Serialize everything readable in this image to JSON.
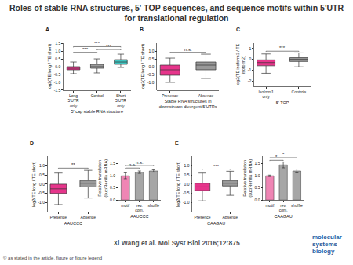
{
  "header": {
    "title": "Roles of stable RNA structures, 5' TOP sequences, and sequence motifs within 5'UTR for translational regulation"
  },
  "footer": {
    "citation": "Xi Wang et al. Mol Syst Biol 2016;12:875",
    "copyright": "© as stated in the article, figure or figure legend",
    "logo": "molecular systems biology"
  },
  "chart_data": [
    {
      "panel": "A",
      "type": "box",
      "x_label": "5' cap stable RNA structure",
      "y_label": "log2(TE long / TE short)",
      "categories": [
        "Long 5'UTR only",
        "Control",
        "Short 5'UTR only"
      ],
      "colors": [
        "#e6358b",
        "#9a9a9a",
        "#40c4c0"
      ],
      "boxes": [
        {
          "q1": -0.2,
          "median": -0.1,
          "q3": 0.0,
          "lower": -0.45,
          "upper": 0.3
        },
        {
          "q1": -0.1,
          "median": 0.0,
          "q3": 0.15,
          "lower": -0.4,
          "upper": 0.5
        },
        {
          "q1": 0.15,
          "median": 0.3,
          "q3": 0.45,
          "lower": -0.05,
          "upper": 0.8
        }
      ],
      "ylim": [
        -1.5,
        1.5
      ],
      "yticks": [
        {
          "value": -1.5,
          "label": "-1.5"
        },
        {
          "value": -1,
          "label": "-1.0"
        },
        {
          "value": -0.5,
          "label": "-0.5"
        },
        {
          "value": 0,
          "label": "0.0"
        },
        {
          "value": 0.5,
          "label": "0.5"
        },
        {
          "value": 1,
          "label": "1.0"
        },
        {
          "value": 1.5,
          "label": "1.5"
        }
      ],
      "significance": [
        {
          "text": "***",
          "between": [
            0,
            1
          ]
        },
        {
          "text": "***",
          "between": [
            1,
            2
          ]
        },
        {
          "text": "***",
          "between": [
            0,
            2
          ]
        }
      ]
    },
    {
      "panel": "B",
      "type": "box",
      "x_label": "Stable RNA structures in downstream divergent 5'UTRs",
      "y_label": "log2(TE long / TE short)",
      "categories": [
        "Presence",
        "Absence"
      ],
      "colors": [
        "#e6358b",
        "#9a9a9a"
      ],
      "boxes": [
        {
          "q1": -0.55,
          "median": -0.2,
          "q3": 0.1,
          "lower": -1.0,
          "upper": 0.55
        },
        {
          "q1": -0.2,
          "median": 0.1,
          "q3": 0.3,
          "lower": -0.75,
          "upper": 0.8
        }
      ],
      "ylim": [
        -1.5,
        1.5
      ],
      "yticks": [
        {
          "value": -1,
          "label": "-1.0"
        },
        {
          "value": -0.5,
          "label": "-0.5"
        },
        {
          "value": 0,
          "label": "0.0"
        },
        {
          "value": 0.5,
          "label": "0.5"
        },
        {
          "value": 1,
          "label": "1.0"
        }
      ],
      "significance": [
        {
          "text": "n.s.",
          "between": [
            0,
            1
          ]
        }
      ]
    },
    {
      "panel": "C",
      "type": "box",
      "x_label": "5' TOP",
      "y_label": "log2(TE isoform1 / TE isoform2)",
      "categories": [
        "Isoform1 only",
        "Controls"
      ],
      "colors": [
        "#e6358b",
        "#9a9a9a"
      ],
      "boxes": [
        {
          "q1": -0.6,
          "median": -0.3,
          "q3": -0.05,
          "lower": -1.3,
          "upper": 0.5
        },
        {
          "q1": -0.2,
          "median": 0.0,
          "q3": 0.15,
          "lower": -0.7,
          "upper": 0.6
        }
      ],
      "ylim": [
        -2.5,
        1.5
      ],
      "yticks": [
        -2,
        -1,
        0,
        1
      ],
      "significance": [
        {
          "text": "***",
          "between": [
            0,
            1
          ]
        }
      ]
    },
    {
      "panel": "D",
      "type": "box",
      "x_label": "AAUCCC",
      "y_label": "log2(TE long / TE short)",
      "categories": [
        "Presence",
        "Absence"
      ],
      "colors": [
        "#e6358b",
        "#9a9a9a"
      ],
      "boxes": [
        {
          "q1": -0.5,
          "median": -0.25,
          "q3": 0.0,
          "lower": -1.1,
          "upper": 0.6
        },
        {
          "q1": -0.15,
          "median": 0.05,
          "q3": 0.2,
          "lower": -0.75,
          "upper": 0.75
        }
      ],
      "ylim": [
        -1.5,
        1.5
      ],
      "yticks": [
        {
          "value": -1,
          "label": "-1.0"
        },
        {
          "value": -0.5,
          "label": "-0.5"
        },
        {
          "value": 0,
          "label": "0.0"
        },
        {
          "value": 0.5,
          "label": "0.5"
        },
        {
          "value": 1,
          "label": "1.0"
        }
      ],
      "significance": [
        {
          "text": "**",
          "between": [
            0,
            1
          ]
        }
      ]
    },
    {
      "type": "bar",
      "x_label": "AAUCCC",
      "y_label": "Relative translation (Luc/Renilla mRNA)",
      "categories": [
        "motif",
        "rev. com.",
        "shuffle"
      ],
      "values": [
        1.0,
        1.15,
        1.2
      ],
      "errors": [
        0.12,
        0.05,
        0.05
      ],
      "colors": [
        "#ef85b4",
        "#a6a6a6",
        "#a6a6a6"
      ],
      "ylim": [
        0,
        1.8
      ],
      "yticks": [
        {
          "value": 0,
          "label": "0.0"
        },
        {
          "value": 0.5,
          "label": "0.5"
        },
        {
          "value": 1,
          "label": "1.0"
        },
        {
          "value": 1.5,
          "label": "1.5"
        }
      ],
      "significance": [
        {
          "text": "n.s.",
          "between": [
            0,
            1
          ]
        },
        {
          "text": "n.s.",
          "between": [
            0,
            2
          ]
        }
      ]
    },
    {
      "panel": "E",
      "type": "box",
      "x_label": "CAAGAU",
      "y_label": "log2(TE long / TE short)",
      "categories": [
        "Presence",
        "Absence"
      ],
      "colors": [
        "#e6358b",
        "#9a9a9a"
      ],
      "boxes": [
        {
          "q1": -0.35,
          "median": -0.15,
          "q3": 0.05,
          "lower": -0.9,
          "upper": 0.6
        },
        {
          "q1": -0.1,
          "median": 0.05,
          "q3": 0.2,
          "lower": -0.6,
          "upper": 0.7
        }
      ],
      "ylim": [
        -1.5,
        1.5
      ],
      "yticks": [
        {
          "value": -1,
          "label": "-1.0"
        },
        {
          "value": -0.5,
          "label": "-0.5"
        },
        {
          "value": 0,
          "label": "0.0"
        },
        {
          "value": 0.5,
          "label": "0.5"
        },
        {
          "value": 1,
          "label": "1.0"
        }
      ],
      "significance": [
        {
          "text": "***",
          "between": [
            0,
            1
          ]
        }
      ]
    },
    {
      "type": "bar",
      "x_label": "CAAGAU",
      "y_label": "Relative translation (Luc/Renilla mRNA)",
      "categories": [
        "motif",
        "rev. com.",
        "shuffle"
      ],
      "values": [
        1.0,
        1.45,
        1.2
      ],
      "errors": [
        0.03,
        0.12,
        0.08
      ],
      "colors": [
        "#ef85b4",
        "#a6a6a6",
        "#a6a6a6"
      ],
      "ylim": [
        0,
        1.8
      ],
      "yticks": [
        {
          "value": 0,
          "label": "0.0"
        },
        {
          "value": 0.5,
          "label": "0.5"
        },
        {
          "value": 1,
          "label": "1.0"
        },
        {
          "value": 1.5,
          "label": "1.5"
        }
      ],
      "significance": [
        {
          "text": "*",
          "between": [
            0,
            1
          ]
        },
        {
          "text": "*",
          "between": [
            0,
            2
          ]
        }
      ]
    }
  ]
}
